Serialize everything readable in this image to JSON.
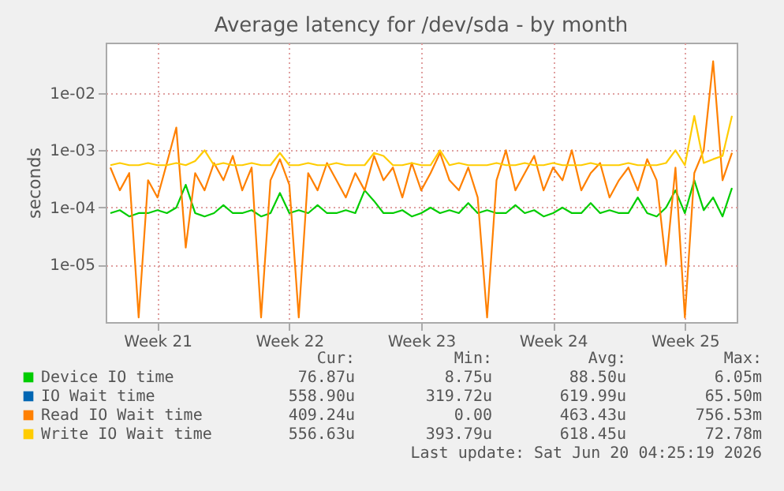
{
  "chart_data": {
    "type": "line",
    "title": "Average latency for /dev/sda - by month",
    "ylabel": "seconds",
    "log": true,
    "grid": true,
    "legend": "bottom",
    "line_style": "solid",
    "marker": "none",
    "categories": [
      null,
      null,
      null,
      null,
      null,
      "Week 21",
      null,
      null,
      null,
      null,
      null,
      null,
      null,
      null,
      null,
      null,
      null,
      null,
      null,
      "Week 22",
      null,
      null,
      null,
      null,
      null,
      null,
      null,
      null,
      null,
      null,
      null,
      null,
      null,
      "Week 23",
      null,
      null,
      null,
      null,
      null,
      null,
      null,
      null,
      null,
      null,
      null,
      null,
      null,
      "Week 24",
      null,
      null,
      null,
      null,
      null,
      null,
      null,
      null,
      null,
      null,
      null,
      null,
      null,
      "Week 25",
      null,
      null,
      null,
      null,
      null
    ],
    "ylim": [
      1e-06,
      0.076
    ],
    "yticks": [
      {
        "value": 1e-05,
        "label": "1e-05"
      },
      {
        "value": 0.0001,
        "label": "1e-04"
      },
      {
        "value": 0.001,
        "label": "1e-03"
      },
      {
        "value": 0.01,
        "label": "1e-02"
      }
    ],
    "series": [
      {
        "name": "Device IO time",
        "color": "#00cc00",
        "values": [
          8e-05,
          9e-05,
          7e-05,
          8e-05,
          8e-05,
          9e-05,
          8e-05,
          0.0001,
          0.00025,
          8e-05,
          7e-05,
          8e-05,
          0.00011,
          8e-05,
          8e-05,
          9e-05,
          7e-05,
          8e-05,
          0.00018,
          8e-05,
          9e-05,
          8e-05,
          0.00011,
          8e-05,
          8e-05,
          9e-05,
          8e-05,
          0.0002,
          0.00013,
          8e-05,
          8e-05,
          9e-05,
          7e-05,
          8e-05,
          0.0001,
          8e-05,
          9e-05,
          8e-05,
          0.00012,
          8e-05,
          9e-05,
          8e-05,
          8e-05,
          0.00011,
          8e-05,
          9e-05,
          7e-05,
          8e-05,
          0.0001,
          8e-05,
          8e-05,
          0.00012,
          8e-05,
          9e-05,
          8e-05,
          8e-05,
          0.00015,
          8e-05,
          7e-05,
          0.0001,
          0.0002,
          8e-05,
          0.0003,
          9e-05,
          0.00015,
          7e-05,
          0.00022
        ]
      },
      {
        "name": "IO Wait time",
        "color": "#0066b3",
        "values": [
          null,
          null,
          null,
          null,
          null,
          null,
          null,
          null,
          null,
          null,
          null,
          null,
          null,
          null,
          null,
          null,
          null,
          null,
          null,
          null,
          null,
          null,
          null,
          null,
          null,
          null,
          null,
          null,
          null,
          null,
          null,
          null,
          null,
          null,
          null,
          null,
          null,
          null,
          null,
          null,
          null,
          null,
          null,
          null,
          null,
          null,
          null,
          null,
          null,
          null,
          null,
          null,
          null,
          null,
          null,
          null,
          null,
          null,
          null,
          null,
          null,
          null,
          null,
          null,
          null,
          null,
          null
        ]
      },
      {
        "name": "Read IO Wait time",
        "color": "#ff8000",
        "values": [
          0.0005,
          0.0002,
          0.0004,
          1.2e-06,
          0.0003,
          0.00015,
          0.0006,
          0.0025,
          2e-05,
          0.0004,
          0.0002,
          0.0006,
          0.0003,
          0.0008,
          0.0002,
          0.0005,
          1.2e-06,
          0.0003,
          0.0007,
          0.00025,
          1.2e-06,
          0.0004,
          0.0002,
          0.0006,
          0.0003,
          0.00015,
          0.0004,
          0.0002,
          0.0008,
          0.0003,
          0.0005,
          0.00015,
          0.0006,
          0.0002,
          0.0004,
          0.0009,
          0.0003,
          0.0002,
          0.0005,
          0.00015,
          1.2e-06,
          0.0003,
          0.001,
          0.0002,
          0.0004,
          0.0008,
          0.0002,
          0.0005,
          0.0003,
          0.001,
          0.0002,
          0.0004,
          0.0006,
          0.00015,
          0.0003,
          0.0005,
          0.0002,
          0.0007,
          0.0003,
          1e-05,
          0.0005,
          1.2e-06,
          0.0004,
          0.001,
          0.036,
          0.0003,
          0.0009
        ]
      },
      {
        "name": "Write IO Wait time",
        "color": "#ffcc00",
        "values": [
          0.00055,
          0.0006,
          0.00055,
          0.00055,
          0.0006,
          0.00055,
          0.00055,
          0.0006,
          0.00055,
          0.00065,
          0.001,
          0.00055,
          0.0006,
          0.00055,
          0.00055,
          0.0006,
          0.00055,
          0.00055,
          0.0009,
          0.00055,
          0.00055,
          0.0006,
          0.00055,
          0.00055,
          0.0006,
          0.00055,
          0.00055,
          0.00055,
          0.0009,
          0.0008,
          0.00055,
          0.00055,
          0.0006,
          0.00055,
          0.00055,
          0.001,
          0.00055,
          0.0006,
          0.00055,
          0.00055,
          0.00055,
          0.0006,
          0.00055,
          0.00055,
          0.0006,
          0.00055,
          0.00055,
          0.0006,
          0.00055,
          0.00055,
          0.00055,
          0.0006,
          0.00055,
          0.00055,
          0.00055,
          0.0006,
          0.00055,
          0.00055,
          0.00055,
          0.0006,
          0.001,
          0.00055,
          0.004,
          0.0006,
          0.0007,
          0.0008,
          0.004
        ]
      }
    ],
    "annotations": [
      "Cur:",
      "Min:",
      "Avg:",
      "Max:",
      "76.87u",
      "8.75u",
      "88.50u",
      "6.05m",
      "558.90u",
      "319.72u",
      "619.99u",
      "65.50m",
      "409.24u",
      "0.00",
      "463.43u",
      "756.53m",
      "556.63u",
      "393.79u",
      "618.45u",
      "72.78m",
      "Last update: Sat Jun 20 04:25:19 2026"
    ]
  }
}
